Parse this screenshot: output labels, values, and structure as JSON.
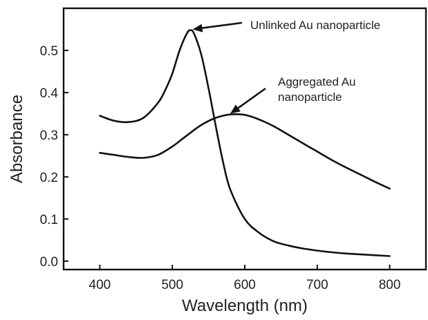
{
  "chart_data": {
    "type": "line",
    "title": "",
    "xlabel": "Wavelength (nm)",
    "ylabel": "Absorbance",
    "xlim": [
      350,
      850
    ],
    "ylim": [
      -0.02,
      0.6
    ],
    "xticks": [
      400,
      500,
      600,
      700,
      800
    ],
    "yticks": [
      0.0,
      0.1,
      0.2,
      0.3,
      0.4,
      0.5
    ],
    "ytick_labels": [
      "0.0",
      "0.1",
      "0.2",
      "0.3",
      "0.4",
      "0.5"
    ],
    "grid": false,
    "legend": "none",
    "series": [
      {
        "x": [
          400,
          420,
          440,
          460,
          480,
          490,
          500,
          510,
          520,
          525,
          530,
          540,
          550,
          560,
          570,
          580,
          600,
          620,
          640,
          660,
          680,
          700,
          720,
          740,
          760,
          780,
          800
        ],
        "values": [
          0.345,
          0.333,
          0.33,
          0.34,
          0.375,
          0.405,
          0.445,
          0.5,
          0.54,
          0.548,
          0.54,
          0.49,
          0.41,
          0.32,
          0.235,
          0.17,
          0.1,
          0.067,
          0.047,
          0.037,
          0.03,
          0.025,
          0.021,
          0.018,
          0.016,
          0.014,
          0.012
        ]
      },
      {
        "x": [
          400,
          420,
          440,
          460,
          480,
          500,
          520,
          540,
          560,
          580,
          600,
          620,
          640,
          660,
          680,
          700,
          720,
          740,
          760,
          780,
          800
        ],
        "values": [
          0.257,
          0.252,
          0.247,
          0.245,
          0.252,
          0.272,
          0.298,
          0.323,
          0.34,
          0.348,
          0.347,
          0.336,
          0.32,
          0.3,
          0.28,
          0.26,
          0.24,
          0.222,
          0.205,
          0.188,
          0.172
        ]
      }
    ],
    "annotations": [
      {
        "text": "Unlinked Au nanoparticle",
        "arrow_to": {
          "x": 528,
          "y": 0.55
        }
      },
      {
        "lines": [
          "Aggregated Au",
          "nanoparticle"
        ],
        "arrow_to": {
          "x": 580,
          "y": 0.35
        }
      }
    ]
  }
}
